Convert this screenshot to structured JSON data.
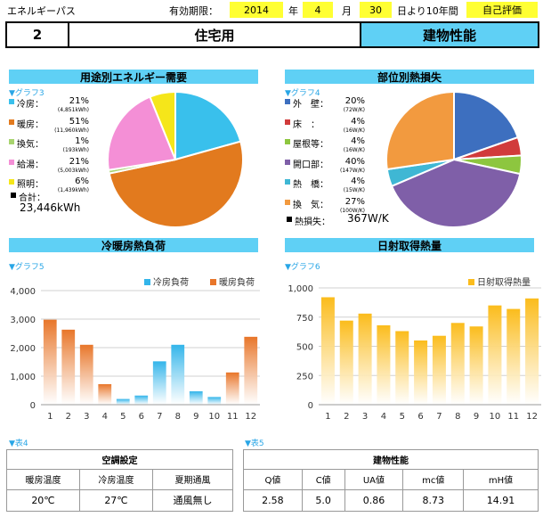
{
  "header": {
    "title": "エネルギーパス",
    "validity_label": "有効期限：",
    "year": "2014",
    "year_label": "年",
    "month": "4",
    "month_label": "月",
    "day": "30",
    "day_label": "日より10年間",
    "badge": "自己評価"
  },
  "row2": {
    "number": "2",
    "usage": "住宅用",
    "section": "建物性能"
  },
  "sections": {
    "energy_demand": "用途別エネルギー需要",
    "heat_loss": "部位別熱損失",
    "hvac_load": "冷暖房熱負荷",
    "solar_gain": "日射取得熱量"
  },
  "graph_labels": {
    "g3": "▼グラフ3",
    "g4": "▼グラフ4",
    "g5": "▼グラフ5",
    "g6": "▼グラフ6"
  },
  "table_labels": {
    "t4": "▼表4",
    "t5": "▼表5"
  },
  "energy_legend": [
    {
      "name": "冷房：",
      "pct": "21%",
      "sub": "(4,851kWh)",
      "color": "#39c0ec"
    },
    {
      "name": "暖房：",
      "pct": "51%",
      "sub": "(11,960kWh)",
      "color": "#e27a1e"
    },
    {
      "name": "換気：",
      "pct": "1%",
      "sub": "(193kWh)",
      "color": "#a8d46f"
    },
    {
      "name": "給湯：",
      "pct": "21%",
      "sub": "(5,003kWh)",
      "color": "#f48fd6"
    },
    {
      "name": "照明：",
      "pct": "6%",
      "sub": "(1,439kWh)",
      "color": "#f5e61a"
    }
  ],
  "energy_total": {
    "label": "合計：",
    "value": "23,446kWh"
  },
  "loss_legend": [
    {
      "name": "外　壁：",
      "pct": "20%",
      "sub": "(72W/K)",
      "color": "#3d6fbf"
    },
    {
      "name": "床　：",
      "pct": "4%",
      "sub": "(16W/K)",
      "color": "#d13b3b"
    },
    {
      "name": "屋根等：",
      "pct": "4%",
      "sub": "(16W/K)",
      "color": "#8dc63f"
    },
    {
      "name": "開口部：",
      "pct": "40%",
      "sub": "(147W/K)",
      "color": "#7f5fa8"
    },
    {
      "name": "熱　橋：",
      "pct": "4%",
      "sub": "(15W/K)",
      "color": "#3fb7d4"
    },
    {
      "name": "換　気：",
      "pct": "27%",
      "sub": "(100W/K)",
      "color": "#f29a3f"
    }
  ],
  "loss_total": {
    "label": "熱損失：",
    "value": "367W/K"
  },
  "chart_data": [
    {
      "type": "pie",
      "categories": [
        "冷房",
        "暖房",
        "換気",
        "給湯",
        "照明"
      ],
      "values": [
        4851,
        11960,
        193,
        5003,
        1439
      ],
      "colors": [
        "#39c0ec",
        "#e27a1e",
        "#a8d46f",
        "#f48fd6",
        "#f5e61a"
      ]
    },
    {
      "type": "pie",
      "categories": [
        "外壁",
        "床",
        "屋根等",
        "開口部",
        "熱橋",
        "換気"
      ],
      "values": [
        72,
        16,
        16,
        147,
        15,
        100
      ],
      "colors": [
        "#3d6fbf",
        "#d13b3b",
        "#8dc63f",
        "#7f5fa8",
        "#3fb7d4",
        "#f29a3f"
      ]
    },
    {
      "type": "bar",
      "categories": [
        "1",
        "2",
        "3",
        "4",
        "5",
        "6",
        "7",
        "8",
        "9",
        "10",
        "11",
        "12"
      ],
      "series": [
        {
          "name": "冷房負荷",
          "values": [
            0,
            0,
            0,
            0,
            200,
            320,
            1520,
            2100,
            470,
            270,
            0,
            0
          ],
          "color": "#33b5ea"
        },
        {
          "name": "暖房負荷",
          "values": [
            2980,
            2630,
            2100,
            720,
            0,
            0,
            0,
            0,
            0,
            0,
            1130,
            2380
          ],
          "color": "#e8762a"
        }
      ],
      "ylim": [
        0,
        4000
      ],
      "yticks": [
        "0",
        "1,000",
        "2,000",
        "3,000",
        "4,000"
      ],
      "legend": "top-right"
    },
    {
      "type": "bar",
      "categories": [
        "1",
        "2",
        "3",
        "4",
        "5",
        "6",
        "7",
        "8",
        "9",
        "10",
        "11",
        "12"
      ],
      "series": [
        {
          "name": "日射取得熱量",
          "values": [
            920,
            720,
            780,
            680,
            630,
            550,
            590,
            700,
            670,
            850,
            820,
            910
          ],
          "color": "#fbbc1c"
        }
      ],
      "ylim": [
        0,
        1000
      ],
      "yticks": [
        "0",
        "250",
        "500",
        "750",
        "1,000"
      ],
      "legend": "top-right"
    }
  ],
  "table4": {
    "title": "空調設定",
    "headers": [
      "暖房温度",
      "冷房温度",
      "夏期通風"
    ],
    "values": [
      "20℃",
      "27℃",
      "通風無し"
    ]
  },
  "table5": {
    "title": "建物性能",
    "headers": [
      "Q値",
      "C値",
      "UA値",
      "mc値",
      "mH値"
    ],
    "values": [
      "2.58",
      "5.0",
      "0.86",
      "8.73",
      "14.91"
    ]
  }
}
